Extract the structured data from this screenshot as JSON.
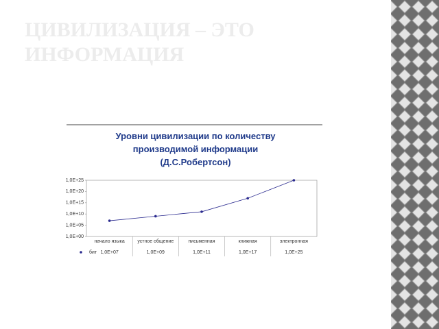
{
  "slide_title": "ЦИВИЛИЗАЦИЯ – ЭТО ИНФОРМАЦИЯ",
  "chart_data": {
    "type": "line",
    "title": "Уровни цивилизации по количеству производимой информации (Д.С.Робертсон)",
    "categories": [
      "начало языка",
      "устное общение",
      "письменная",
      "книжная",
      "электронная"
    ],
    "series": [
      {
        "name": "бит",
        "color": "#2b2b8f",
        "values": [
          10000000.0,
          1000000000.0,
          100000000000.0,
          1e+17,
          1e+25
        ],
        "value_labels": [
          "1,0E+07",
          "1,0E+09",
          "1,0E+11",
          "1,0E+17",
          "1,0E+25"
        ]
      }
    ],
    "log_scale": true,
    "ylim": [
      1,
      1e+25
    ],
    "yticks": [
      {
        "value": 1e+25,
        "label": "1,0E+25"
      },
      {
        "value": 1e+20,
        "label": "1,0E+20"
      },
      {
        "value": 1000000000000000.0,
        "label": "1,0E+15"
      },
      {
        "value": 10000000000.0,
        "label": "1,0E+10"
      },
      {
        "value": 100000.0,
        "label": "1,0E+05"
      },
      {
        "value": 1,
        "label": "1,0E+00"
      }
    ]
  }
}
